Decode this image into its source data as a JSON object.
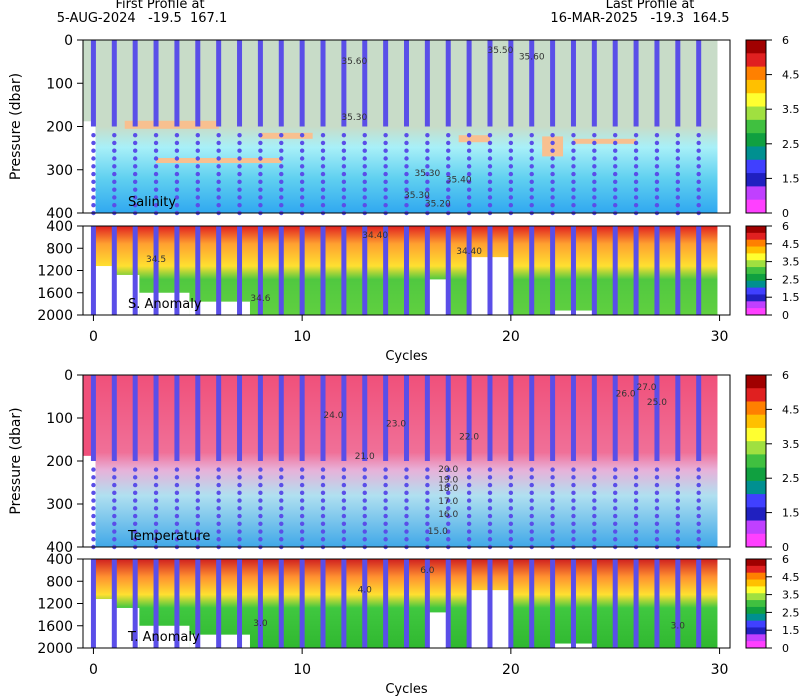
{
  "header": {
    "first_label": "First Profile at",
    "first_value": "5-AUG-2024   -19.5  167.1",
    "last_label": "Last Profile at",
    "last_value": "16-MAR-2025   -19.3  164.5"
  },
  "chart_data": [
    {
      "type": "section",
      "label": "Salinity",
      "ylabel": "Pressure (dbar)",
      "y_inverted": true,
      "xlim": [
        -0.5,
        30.5
      ],
      "ylim": [
        0,
        400
      ],
      "yticks": [
        0,
        100,
        200,
        300,
        400
      ],
      "profile_cycles": [
        0,
        1,
        2,
        3,
        4,
        5,
        6,
        7,
        8,
        9,
        10,
        11,
        12,
        13,
        14,
        15,
        16,
        17,
        18,
        19,
        20,
        21,
        22,
        23,
        24,
        25,
        26,
        27,
        28,
        29
      ],
      "colorbar": {
        "colors": [
          "#a00000",
          "#e02020",
          "#ff8000",
          "#ffc000",
          "#ffff30",
          "#a0e040",
          "#40c040",
          "#10a040",
          "#009090",
          "#4040ff",
          "#2020c0",
          "#c040ff",
          "#ff40ff"
        ],
        "ticks": [
          6,
          4.5,
          3.5,
          2.5,
          1.5,
          0
        ]
      },
      "annotations": [
        {
          "text": "35.60",
          "x": 12.5,
          "y": 55
        },
        {
          "text": "35.50",
          "x": 19.5,
          "y": 30
        },
        {
          "text": "35.60",
          "x": 21,
          "y": 45
        },
        {
          "text": "35.30",
          "x": 12.5,
          "y": 185
        },
        {
          "text": "35.30",
          "x": 16,
          "y": 315
        },
        {
          "text": "35.40",
          "x": 17.5,
          "y": 330
        },
        {
          "text": "35.30",
          "x": 15.5,
          "y": 365
        },
        {
          "text": "35.20",
          "x": 16.5,
          "y": 385
        }
      ]
    },
    {
      "type": "section",
      "label": "S. Anomaly",
      "xlabel": "Cycles",
      "y_inverted": true,
      "xlim": [
        -0.5,
        30.5
      ],
      "ylim": [
        400,
        2000
      ],
      "yticks": [
        400,
        800,
        1200,
        1600,
        2000
      ],
      "xticks": [
        0,
        10,
        20,
        30
      ],
      "profile_cycles": [
        0,
        1,
        2,
        3,
        4,
        5,
        6,
        7,
        8,
        9,
        10,
        11,
        12,
        13,
        14,
        15,
        16,
        17,
        18,
        19,
        20,
        21,
        22,
        23,
        24,
        25,
        26,
        27,
        28,
        29
      ],
      "colorbar": {
        "colors": [
          "#a00000",
          "#e02020",
          "#ff8000",
          "#ffc000",
          "#ffff30",
          "#a0e040",
          "#40c040",
          "#10a040",
          "#009090",
          "#4040ff",
          "#2020c0",
          "#c040ff",
          "#ff40ff"
        ],
        "ticks": [
          6,
          4.5,
          3.5,
          2.5,
          1.5,
          0
        ]
      },
      "annotations": [
        {
          "text": "34.5",
          "x": 3,
          "y": 1050
        },
        {
          "text": "34.6",
          "x": 8,
          "y": 1750
        },
        {
          "text": "34.40",
          "x": 18,
          "y": 900
        },
        {
          "text": "34.40",
          "x": 13.5,
          "y": 620
        }
      ]
    },
    {
      "type": "section",
      "label": "Temperature",
      "ylabel": "Pressure (dbar)",
      "y_inverted": true,
      "xlim": [
        -0.5,
        30.5
      ],
      "ylim": [
        0,
        400
      ],
      "yticks": [
        0,
        100,
        200,
        300,
        400
      ],
      "profile_cycles": [
        0,
        1,
        2,
        3,
        4,
        5,
        6,
        7,
        8,
        9,
        10,
        11,
        12,
        13,
        14,
        15,
        16,
        17,
        18,
        19,
        20,
        21,
        22,
        23,
        24,
        25,
        26,
        27,
        28,
        29
      ],
      "colorbar": {
        "colors": [
          "#a00000",
          "#e02020",
          "#ff8000",
          "#ffc000",
          "#ffff30",
          "#a0e040",
          "#40c040",
          "#10a040",
          "#009090",
          "#4040ff",
          "#2020c0",
          "#c040ff",
          "#ff40ff"
        ],
        "ticks": [
          6,
          4.5,
          3.5,
          2.5,
          1.5,
          0
        ]
      },
      "annotations": [
        {
          "text": "24.0",
          "x": 11.5,
          "y": 100
        },
        {
          "text": "23.0",
          "x": 14.5,
          "y": 120
        },
        {
          "text": "22.0",
          "x": 18,
          "y": 150
        },
        {
          "text": "26.0",
          "x": 25.5,
          "y": 50
        },
        {
          "text": "25.0",
          "x": 27,
          "y": 70
        },
        {
          "text": "27.0",
          "x": 26.5,
          "y": 35
        },
        {
          "text": "21.0",
          "x": 13,
          "y": 195
        },
        {
          "text": "20.0",
          "x": 17,
          "y": 225
        },
        {
          "text": "19.0",
          "x": 17,
          "y": 250
        },
        {
          "text": "18.0",
          "x": 17,
          "y": 270
        },
        {
          "text": "17.0",
          "x": 17,
          "y": 300
        },
        {
          "text": "16.0",
          "x": 17,
          "y": 330
        },
        {
          "text": "15.0",
          "x": 16.5,
          "y": 370
        }
      ]
    },
    {
      "type": "section",
      "label": "T. Anomaly",
      "xlabel": "Cycles",
      "y_inverted": true,
      "xlim": [
        -0.5,
        30.5
      ],
      "ylim": [
        400,
        2000
      ],
      "yticks": [
        400,
        800,
        1200,
        1600,
        2000
      ],
      "xticks": [
        0,
        10,
        20,
        30
      ],
      "profile_cycles": [
        0,
        1,
        2,
        3,
        4,
        5,
        6,
        7,
        8,
        9,
        10,
        11,
        12,
        13,
        14,
        15,
        16,
        17,
        18,
        19,
        20,
        21,
        22,
        23,
        24,
        25,
        26,
        27,
        28,
        29
      ],
      "colorbar": {
        "colors": [
          "#a00000",
          "#e02020",
          "#ff8000",
          "#ffc000",
          "#ffff30",
          "#a0e040",
          "#40c040",
          "#10a040",
          "#009090",
          "#4040ff",
          "#2020c0",
          "#c040ff",
          "#ff40ff"
        ],
        "ticks": [
          6,
          4.5,
          3.5,
          2.5,
          1.5,
          0
        ]
      },
      "annotations": [
        {
          "text": "6.0",
          "x": 16,
          "y": 650
        },
        {
          "text": "4.0",
          "x": 13,
          "y": 1000
        },
        {
          "text": "3.0",
          "x": 28,
          "y": 1650
        },
        {
          "text": "3.0",
          "x": 8,
          "y": 1600
        }
      ]
    }
  ]
}
